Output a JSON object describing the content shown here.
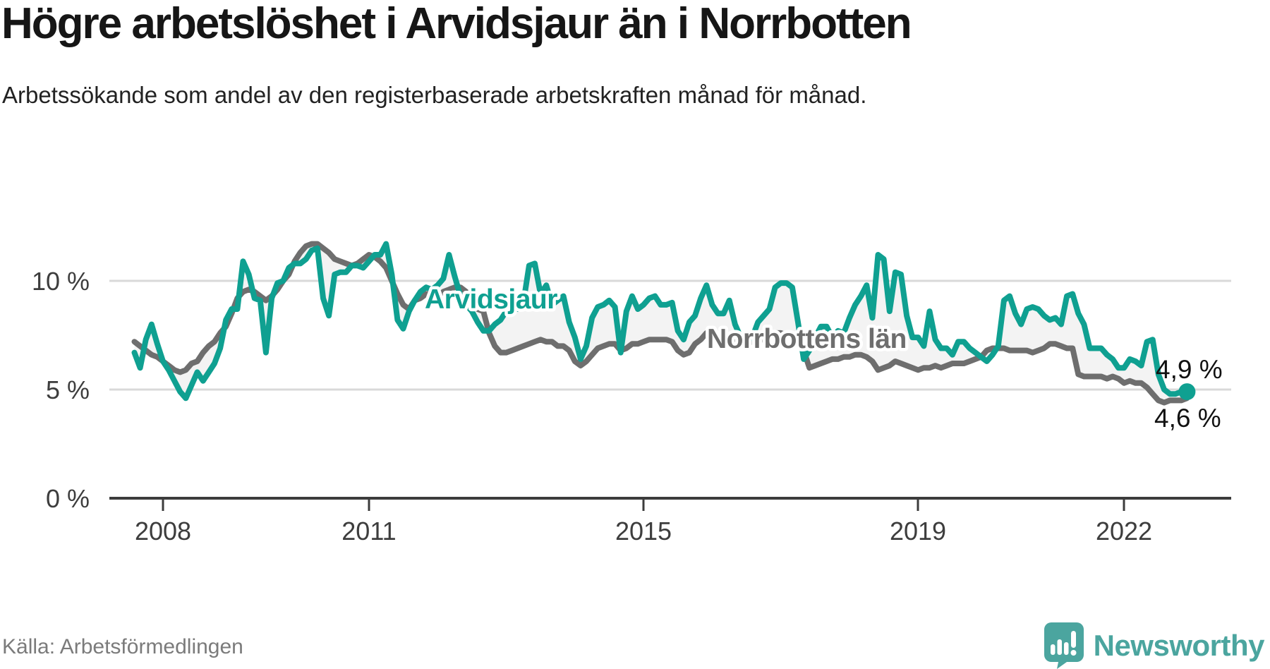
{
  "header": {
    "title": "Högre arbetslöshet i Arvidsjaur än i Norrbotten",
    "subtitle": "Arbetssökande som andel av den registerbaserade arbetskraften månad för månad."
  },
  "footer": {
    "source": "Källa: Arbetsförmedlingen",
    "brand": "Newsworthy"
  },
  "colors": {
    "arvidsjaur": "#0fa091",
    "norrbotten": "#6e6e6e",
    "band": "#f2f2f2",
    "gridline": "#d9d9d9",
    "axis": "#3c3c3c",
    "logo": "#4ba59f"
  },
  "chart_data": {
    "type": "line",
    "frequency": "monthly",
    "x_start": "2007-08",
    "x_end": "2022-12",
    "grid": "horizontal",
    "legend_position": "inline-labels",
    "ylim": [
      0,
      14.6
    ],
    "x_ticks": [
      "2008",
      "2011",
      "2015",
      "2019",
      "2022"
    ],
    "x_tick_years": [
      2008,
      2011,
      2015,
      2019,
      2022
    ],
    "y_ticks": [
      {
        "value": 0,
        "label": "0 %"
      },
      {
        "value": 5,
        "label": "5 %"
      },
      {
        "value": 10,
        "label": "10 %"
      }
    ],
    "end_labels": {
      "arvidsjaur": "4,9 %",
      "norrbotten": "4,6 %"
    },
    "series": [
      {
        "name": "Arvidsjaur",
        "label_text": "Arvidsjaur",
        "color": "#0fa091",
        "last_value": 4.9,
        "values": [
          6.7,
          6.0,
          7.3,
          8.0,
          7.1,
          6.3,
          5.9,
          5.4,
          4.9,
          4.6,
          5.2,
          5.8,
          5.4,
          5.8,
          6.2,
          6.9,
          8.2,
          8.7,
          8.7,
          10.9,
          10.3,
          9.2,
          9.1,
          6.7,
          9.2,
          9.9,
          10.0,
          10.6,
          10.8,
          10.8,
          11.0,
          11.4,
          11.5,
          9.2,
          8.4,
          10.3,
          10.4,
          10.4,
          10.7,
          10.7,
          10.6,
          10.9,
          11.2,
          11.2,
          11.7,
          10.3,
          8.2,
          7.8,
          8.6,
          9.1,
          9.5,
          9.7,
          9.6,
          9.8,
          10.1,
          11.2,
          10.2,
          9.3,
          8.9,
          8.6,
          8.1,
          7.7,
          7.7,
          8.0,
          8.2,
          8.6,
          8.9,
          8.7,
          9.0,
          10.7,
          10.8,
          9.4,
          9.8,
          8.9,
          9.1,
          9.3,
          8.1,
          7.4,
          6.4,
          7.0,
          8.3,
          8.8,
          8.9,
          9.1,
          8.8,
          6.7,
          8.6,
          9.3,
          8.7,
          8.9,
          9.2,
          9.3,
          8.9,
          8.9,
          9.0,
          7.7,
          7.3,
          8.1,
          8.4,
          9.2,
          9.8,
          8.9,
          8.5,
          8.5,
          9.1,
          8.0,
          7.4,
          7.2,
          7.4,
          8.1,
          8.4,
          8.7,
          9.7,
          9.9,
          9.9,
          9.7,
          8.1,
          6.4,
          6.8,
          7.4,
          7.9,
          7.9,
          7.4,
          7.7,
          7.6,
          8.3,
          8.9,
          9.3,
          9.8,
          8.3,
          11.2,
          11.0,
          8.6,
          10.4,
          10.3,
          8.4,
          7.4,
          7.4,
          7.0,
          8.6,
          7.3,
          6.9,
          6.9,
          6.6,
          7.2,
          7.2,
          6.9,
          6.7,
          6.5,
          6.3,
          6.6,
          7.0,
          9.1,
          9.3,
          8.5,
          8.0,
          8.7,
          8.8,
          8.7,
          8.4,
          8.2,
          8.3,
          8.0,
          9.3,
          9.4,
          8.5,
          8.0,
          6.9,
          6.9,
          6.9,
          6.6,
          6.4,
          6.0,
          6.0,
          6.4,
          6.3,
          6.1,
          7.2,
          7.3,
          5.7,
          5.0,
          4.8,
          4.8,
          4.9,
          4.9
        ]
      },
      {
        "name": "Norrbottens län",
        "label_text": "Norrbottens län",
        "color": "#6e6e6e",
        "last_value": 4.6,
        "values": [
          7.2,
          7.0,
          6.8,
          6.6,
          6.5,
          6.3,
          6.1,
          5.9,
          5.8,
          5.9,
          6.2,
          6.3,
          6.7,
          7.0,
          7.2,
          7.6,
          7.9,
          8.5,
          9.2,
          9.5,
          9.6,
          9.5,
          9.3,
          9.1,
          9.3,
          9.6,
          10.0,
          10.3,
          10.9,
          11.3,
          11.6,
          11.7,
          11.7,
          11.5,
          11.3,
          11.0,
          10.9,
          10.8,
          10.7,
          10.8,
          11.0,
          11.2,
          11.1,
          10.9,
          10.6,
          10.0,
          9.4,
          8.9,
          8.7,
          9.1,
          9.2,
          9.4,
          9.4,
          9.3,
          9.5,
          9.6,
          9.7,
          9.7,
          9.5,
          9.1,
          8.7,
          8.6,
          7.6,
          7.0,
          6.7,
          6.7,
          6.8,
          6.9,
          7.0,
          7.1,
          7.2,
          7.3,
          7.2,
          7.2,
          7.0,
          7.0,
          6.8,
          6.3,
          6.1,
          6.3,
          6.6,
          6.9,
          7.0,
          7.1,
          7.1,
          6.8,
          6.9,
          7.1,
          7.1,
          7.2,
          7.3,
          7.3,
          7.3,
          7.3,
          7.2,
          6.8,
          6.6,
          6.7,
          7.1,
          7.3,
          7.6,
          7.5,
          7.4,
          7.4,
          7.3,
          7.2,
          7.0,
          7.1,
          7.2,
          7.3,
          7.3,
          7.5,
          7.6,
          7.6,
          7.5,
          7.5,
          7.1,
          6.8,
          6.0,
          6.1,
          6.2,
          6.3,
          6.4,
          6.4,
          6.5,
          6.5,
          6.6,
          6.6,
          6.5,
          6.3,
          5.9,
          6.0,
          6.1,
          6.3,
          6.2,
          6.1,
          6.0,
          5.9,
          6.0,
          6.0,
          6.1,
          6.0,
          6.1,
          6.2,
          6.2,
          6.2,
          6.3,
          6.4,
          6.5,
          6.8,
          6.9,
          6.9,
          6.9,
          6.8,
          6.8,
          6.8,
          6.8,
          6.7,
          6.8,
          6.9,
          7.1,
          7.1,
          7.0,
          6.9,
          6.9,
          5.7,
          5.6,
          5.6,
          5.6,
          5.6,
          5.5,
          5.6,
          5.5,
          5.3,
          5.4,
          5.3,
          5.3,
          5.1,
          4.8,
          4.5,
          4.4,
          4.5,
          4.5,
          4.5,
          4.6
        ]
      }
    ]
  }
}
